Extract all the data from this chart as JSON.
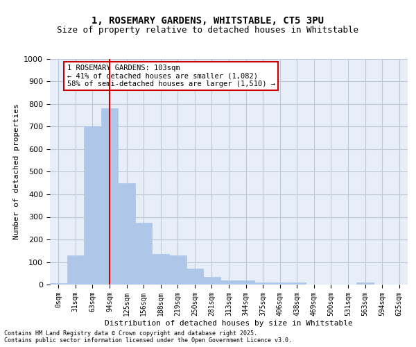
{
  "title_line1": "1, ROSEMARY GARDENS, WHITSTABLE, CT5 3PU",
  "title_line2": "Size of property relative to detached houses in Whitstable",
  "xlabel": "Distribution of detached houses by size in Whitstable",
  "ylabel": "Number of detached properties",
  "bar_color": "#aec6e8",
  "bar_edge_color": "#aec6e8",
  "grid_color": "#c0c8d8",
  "background_color": "#e8eef8",
  "categories": [
    "0sqm",
    "31sqm",
    "63sqm",
    "94sqm",
    "125sqm",
    "156sqm",
    "188sqm",
    "219sqm",
    "250sqm",
    "281sqm",
    "313sqm",
    "344sqm",
    "375sqm",
    "406sqm",
    "438sqm",
    "469sqm",
    "500sqm",
    "531sqm",
    "563sqm",
    "594sqm",
    "625sqm"
  ],
  "values": [
    5,
    130,
    700,
    780,
    450,
    275,
    135,
    130,
    70,
    35,
    20,
    20,
    10,
    10,
    10,
    0,
    0,
    0,
    10,
    0,
    0
  ],
  "ylim": [
    0,
    1000
  ],
  "yticks": [
    0,
    100,
    200,
    300,
    400,
    500,
    600,
    700,
    800,
    900,
    1000
  ],
  "property_line_x": 3,
  "annotation_text": "1 ROSEMARY GARDENS: 103sqm\n← 41% of detached houses are smaller (1,082)\n58% of semi-detached houses are larger (1,510) →",
  "annotation_box_color": "#ffffff",
  "annotation_box_edge": "#cc0000",
  "property_line_color": "#cc0000",
  "footer_line1": "Contains HM Land Registry data © Crown copyright and database right 2025.",
  "footer_line2": "Contains public sector information licensed under the Open Government Licence v3.0."
}
